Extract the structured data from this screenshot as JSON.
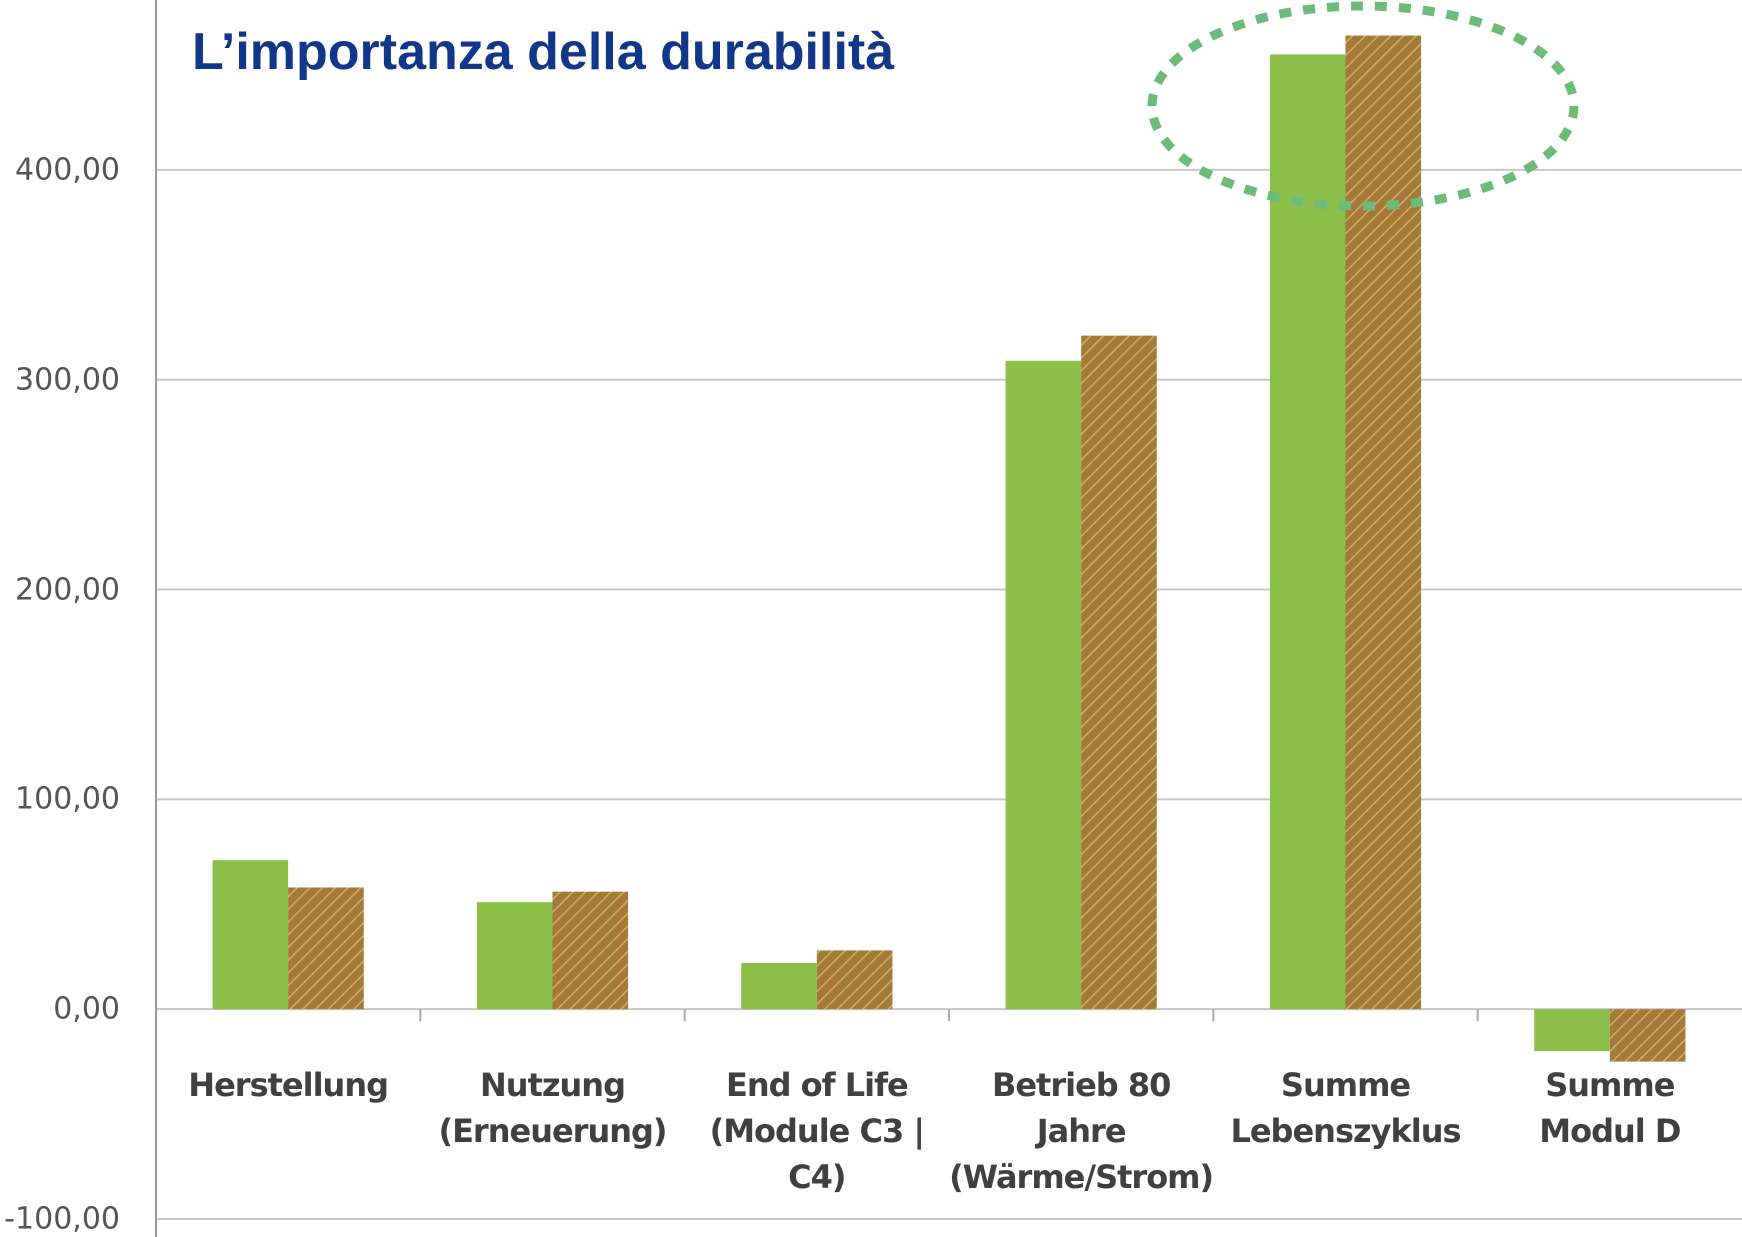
{
  "chart_data": {
    "type": "bar",
    "title": "L’importanza della durabilità",
    "categories": [
      "Herstellung",
      "Nutzung\n(Erneuerung)",
      "End of Life\n(Module C3 | C4)",
      "Betrieb 80 Jahre\n(Wärme/Strom)",
      "Summe\nLebenszyklus",
      "Summe\nModul D"
    ],
    "series": [
      {
        "color": "#8cbf4a",
        "values": [
          71,
          51,
          22,
          309,
          455,
          -20
        ]
      },
      {
        "color": "#a47a38",
        "hatch": true,
        "values": [
          58,
          56,
          28,
          321,
          464,
          -25
        ]
      }
    ],
    "ylim": [
      -100,
      480
    ],
    "yticks": [
      {
        "value": -100,
        "label": "-100,00"
      },
      {
        "value": 0,
        "label": "0,00"
      },
      {
        "value": 100,
        "label": "100,00"
      },
      {
        "value": 200,
        "label": "200,00"
      },
      {
        "value": 300,
        "label": "300,00"
      },
      {
        "value": 400,
        "label": "400,00"
      }
    ],
    "grid": true
  }
}
